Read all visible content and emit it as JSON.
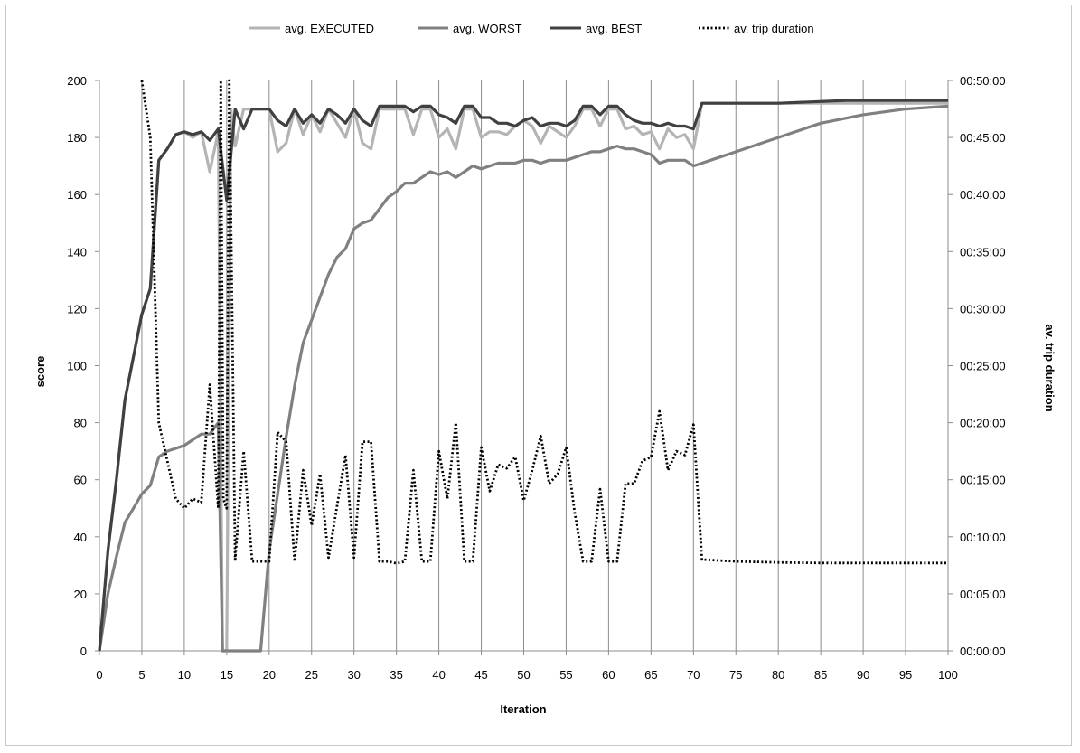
{
  "chart_data": {
    "type": "line",
    "xlabel": "Iteration",
    "ylabel": "score",
    "y2label": "av. trip duration",
    "xlim": [
      0,
      100
    ],
    "ylim": [
      0,
      200
    ],
    "y2lim_seconds": [
      0,
      3000
    ],
    "x_ticks": [
      0,
      5,
      10,
      15,
      20,
      25,
      30,
      35,
      40,
      45,
      50,
      55,
      60,
      65,
      70,
      75,
      80,
      85,
      90,
      95,
      100
    ],
    "y_ticks": [
      0,
      20,
      40,
      60,
      80,
      100,
      120,
      140,
      160,
      180,
      200
    ],
    "y2_tick_labels": [
      "00:00:00",
      "00:05:00",
      "00:10:00",
      "00:15:00",
      "00:20:00",
      "00:25:00",
      "00:30:00",
      "00:35:00",
      "00:40:00",
      "00:45:00",
      "00:50:00"
    ],
    "grid": "vertical",
    "legend_position": "top",
    "series": [
      {
        "name": "avg. EXECUTED",
        "color": "#b4b4b4",
        "style": "solid",
        "axis": "left",
        "points": [
          [
            0,
            0
          ],
          [
            1,
            35
          ],
          [
            2,
            60
          ],
          [
            3,
            88
          ],
          [
            4,
            103
          ],
          [
            5,
            118
          ],
          [
            6,
            127
          ],
          [
            7,
            172
          ],
          [
            8,
            176
          ],
          [
            9,
            181
          ],
          [
            10,
            182
          ],
          [
            11,
            180
          ],
          [
            12,
            182
          ],
          [
            13,
            168
          ],
          [
            14,
            182
          ],
          [
            14.5,
            0
          ],
          [
            15,
            0
          ],
          [
            15.5,
            190
          ],
          [
            16,
            177
          ],
          [
            17,
            190
          ],
          [
            18,
            190
          ],
          [
            19,
            190
          ],
          [
            20,
            190
          ],
          [
            21,
            175
          ],
          [
            22,
            178
          ],
          [
            23,
            190
          ],
          [
            24,
            181
          ],
          [
            25,
            188
          ],
          [
            26,
            182
          ],
          [
            27,
            190
          ],
          [
            28,
            185
          ],
          [
            29,
            180
          ],
          [
            30,
            190
          ],
          [
            31,
            178
          ],
          [
            32,
            176
          ],
          [
            33,
            190
          ],
          [
            34,
            190
          ],
          [
            35,
            190
          ],
          [
            36,
            190
          ],
          [
            37,
            181
          ],
          [
            38,
            190
          ],
          [
            39,
            190
          ],
          [
            40,
            180
          ],
          [
            41,
            183
          ],
          [
            42,
            176
          ],
          [
            43,
            190
          ],
          [
            44,
            190
          ],
          [
            45,
            180
          ],
          [
            46,
            182
          ],
          [
            47,
            182
          ],
          [
            48,
            181
          ],
          [
            49,
            184
          ],
          [
            50,
            186
          ],
          [
            51,
            184
          ],
          [
            52,
            178
          ],
          [
            53,
            184
          ],
          [
            54,
            182
          ],
          [
            55,
            180
          ],
          [
            56,
            184
          ],
          [
            57,
            190
          ],
          [
            58,
            190
          ],
          [
            59,
            184
          ],
          [
            60,
            190
          ],
          [
            61,
            190
          ],
          [
            62,
            183
          ],
          [
            63,
            184
          ],
          [
            64,
            181
          ],
          [
            65,
            182
          ],
          [
            66,
            176
          ],
          [
            67,
            183
          ],
          [
            68,
            180
          ],
          [
            69,
            181
          ],
          [
            70,
            176
          ],
          [
            71,
            192
          ],
          [
            75,
            192
          ],
          [
            80,
            192
          ],
          [
            85,
            192
          ],
          [
            90,
            192
          ],
          [
            100,
            192
          ]
        ]
      },
      {
        "name": "avg. WORST",
        "color": "#808080",
        "style": "solid",
        "axis": "left",
        "points": [
          [
            0,
            0
          ],
          [
            1,
            20
          ],
          [
            2,
            33
          ],
          [
            3,
            45
          ],
          [
            4,
            50
          ],
          [
            5,
            55
          ],
          [
            6,
            58
          ],
          [
            7,
            68
          ],
          [
            8,
            70
          ],
          [
            9,
            71
          ],
          [
            10,
            72
          ],
          [
            11,
            74
          ],
          [
            12,
            76
          ],
          [
            13,
            76
          ],
          [
            14,
            80
          ],
          [
            14.5,
            0
          ],
          [
            19,
            0
          ],
          [
            20,
            35
          ],
          [
            21,
            55
          ],
          [
            22,
            75
          ],
          [
            23,
            93
          ],
          [
            24,
            108
          ],
          [
            25,
            116
          ],
          [
            26,
            124
          ],
          [
            27,
            132
          ],
          [
            28,
            138
          ],
          [
            29,
            141
          ],
          [
            30,
            148
          ],
          [
            31,
            150
          ],
          [
            32,
            151
          ],
          [
            33,
            155
          ],
          [
            34,
            159
          ],
          [
            35,
            161
          ],
          [
            36,
            164
          ],
          [
            37,
            164
          ],
          [
            38,
            166
          ],
          [
            39,
            168
          ],
          [
            40,
            167
          ],
          [
            41,
            168
          ],
          [
            42,
            166
          ],
          [
            43,
            168
          ],
          [
            44,
            170
          ],
          [
            45,
            169
          ],
          [
            46,
            170
          ],
          [
            47,
            171
          ],
          [
            48,
            171
          ],
          [
            49,
            171
          ],
          [
            50,
            172
          ],
          [
            51,
            172
          ],
          [
            52,
            171
          ],
          [
            53,
            172
          ],
          [
            54,
            172
          ],
          [
            55,
            172
          ],
          [
            56,
            173
          ],
          [
            57,
            174
          ],
          [
            58,
            175
          ],
          [
            59,
            175
          ],
          [
            60,
            176
          ],
          [
            61,
            177
          ],
          [
            62,
            176
          ],
          [
            63,
            176
          ],
          [
            64,
            175
          ],
          [
            65,
            174
          ],
          [
            66,
            171
          ],
          [
            67,
            172
          ],
          [
            68,
            172
          ],
          [
            69,
            172
          ],
          [
            70,
            170
          ],
          [
            71,
            171
          ],
          [
            72,
            172
          ],
          [
            73,
            173
          ],
          [
            75,
            175
          ],
          [
            80,
            180
          ],
          [
            85,
            185
          ],
          [
            90,
            188
          ],
          [
            95,
            190
          ],
          [
            100,
            191
          ]
        ]
      },
      {
        "name": "avg. BEST",
        "color": "#404040",
        "style": "solid",
        "axis": "left",
        "points": [
          [
            0,
            0
          ],
          [
            1,
            35
          ],
          [
            2,
            60
          ],
          [
            3,
            88
          ],
          [
            4,
            103
          ],
          [
            5,
            118
          ],
          [
            6,
            127
          ],
          [
            7,
            172
          ],
          [
            8,
            176
          ],
          [
            9,
            181
          ],
          [
            10,
            182
          ],
          [
            11,
            181
          ],
          [
            12,
            182
          ],
          [
            13,
            179
          ],
          [
            14,
            183
          ],
          [
            15,
            158
          ],
          [
            16,
            190
          ],
          [
            17,
            183
          ],
          [
            18,
            190
          ],
          [
            19,
            190
          ],
          [
            20,
            190
          ],
          [
            21,
            186
          ],
          [
            22,
            184
          ],
          [
            23,
            190
          ],
          [
            24,
            185
          ],
          [
            25,
            188
          ],
          [
            26,
            185
          ],
          [
            27,
            190
          ],
          [
            28,
            188
          ],
          [
            29,
            185
          ],
          [
            30,
            190
          ],
          [
            31,
            186
          ],
          [
            32,
            184
          ],
          [
            33,
            191
          ],
          [
            34,
            191
          ],
          [
            35,
            191
          ],
          [
            36,
            191
          ],
          [
            37,
            189
          ],
          [
            38,
            191
          ],
          [
            39,
            191
          ],
          [
            40,
            188
          ],
          [
            41,
            187
          ],
          [
            42,
            185
          ],
          [
            43,
            191
          ],
          [
            44,
            191
          ],
          [
            45,
            187
          ],
          [
            46,
            187
          ],
          [
            47,
            185
          ],
          [
            48,
            185
          ],
          [
            49,
            184
          ],
          [
            50,
            186
          ],
          [
            51,
            187
          ],
          [
            52,
            184
          ],
          [
            53,
            185
          ],
          [
            54,
            185
          ],
          [
            55,
            184
          ],
          [
            56,
            186
          ],
          [
            57,
            191
          ],
          [
            58,
            191
          ],
          [
            59,
            188
          ],
          [
            60,
            191
          ],
          [
            61,
            191
          ],
          [
            62,
            188
          ],
          [
            63,
            186
          ],
          [
            64,
            185
          ],
          [
            65,
            185
          ],
          [
            66,
            184
          ],
          [
            67,
            185
          ],
          [
            68,
            184
          ],
          [
            69,
            184
          ],
          [
            70,
            183
          ],
          [
            71,
            192
          ],
          [
            75,
            192
          ],
          [
            80,
            192
          ],
          [
            88,
            193
          ],
          [
            100,
            193
          ]
        ]
      },
      {
        "name": "av. trip duration",
        "color": "#000000",
        "style": "dotted",
        "axis": "right",
        "points": [
          [
            5,
            3000
          ],
          [
            6,
            2700
          ],
          [
            7,
            1200
          ],
          [
            8,
            1000
          ],
          [
            9,
            800
          ],
          [
            10,
            750
          ],
          [
            11,
            800
          ],
          [
            12,
            780
          ],
          [
            13,
            1400
          ],
          [
            14,
            750
          ],
          [
            14.3,
            3000
          ],
          [
            14.6,
            800
          ],
          [
            15,
            750
          ],
          [
            15.3,
            3000
          ],
          [
            16,
            480
          ],
          [
            17,
            1050
          ],
          [
            18,
            470
          ],
          [
            19,
            470
          ],
          [
            20,
            470
          ],
          [
            21,
            1150
          ],
          [
            22,
            1100
          ],
          [
            23,
            470
          ],
          [
            24,
            950
          ],
          [
            25,
            660
          ],
          [
            26,
            930
          ],
          [
            27,
            490
          ],
          [
            28,
            760
          ],
          [
            29,
            1030
          ],
          [
            30,
            490
          ],
          [
            31,
            1100
          ],
          [
            32,
            1100
          ],
          [
            33,
            470
          ],
          [
            34,
            470
          ],
          [
            35,
            460
          ],
          [
            36,
            470
          ],
          [
            37,
            950
          ],
          [
            38,
            470
          ],
          [
            39,
            470
          ],
          [
            40,
            1050
          ],
          [
            41,
            800
          ],
          [
            42,
            1200
          ],
          [
            43,
            470
          ],
          [
            44,
            470
          ],
          [
            45,
            1070
          ],
          [
            46,
            840
          ],
          [
            47,
            980
          ],
          [
            48,
            960
          ],
          [
            49,
            1020
          ],
          [
            50,
            790
          ],
          [
            51,
            950
          ],
          [
            52,
            1130
          ],
          [
            53,
            880
          ],
          [
            54,
            930
          ],
          [
            55,
            1070
          ],
          [
            56,
            730
          ],
          [
            57,
            470
          ],
          [
            58,
            470
          ],
          [
            59,
            850
          ],
          [
            60,
            470
          ],
          [
            61,
            470
          ],
          [
            62,
            880
          ],
          [
            63,
            880
          ],
          [
            64,
            1000
          ],
          [
            65,
            1020
          ],
          [
            66,
            1260
          ],
          [
            67,
            950
          ],
          [
            68,
            1050
          ],
          [
            69,
            1030
          ],
          [
            70,
            1190
          ],
          [
            71,
            480
          ],
          [
            75,
            470
          ],
          [
            80,
            465
          ],
          [
            85,
            462
          ],
          [
            90,
            462
          ],
          [
            95,
            462
          ],
          [
            100,
            462
          ]
        ]
      }
    ]
  }
}
